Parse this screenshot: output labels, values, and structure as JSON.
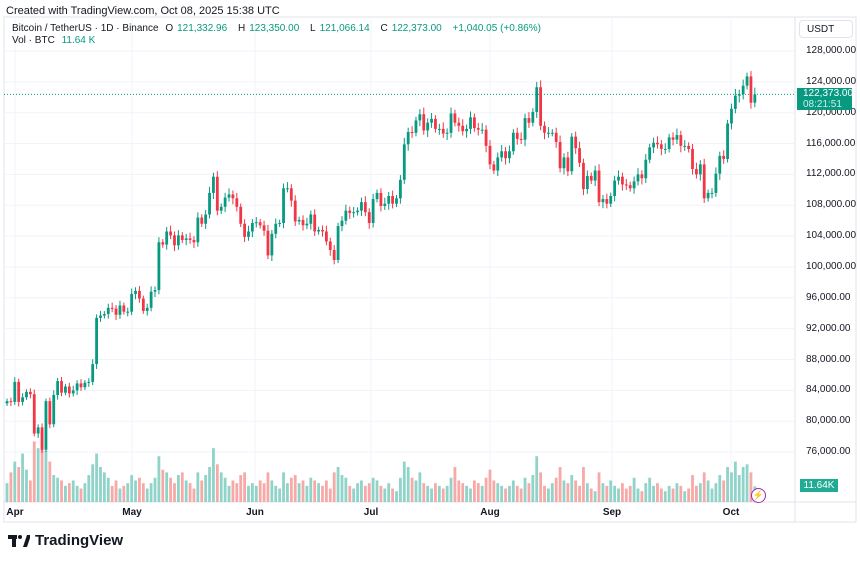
{
  "created": "Created with TradingView.com, Oct 08, 2025 15:38 UTC",
  "legend": {
    "symbol": "Bitcoin / TetherUS · 1D · Binance",
    "o_label": "O",
    "o": "121,332.96",
    "h_label": "H",
    "h": "123,350.00",
    "l_label": "L",
    "l": "121,066.14",
    "c_label": "C",
    "c": "122,373.00",
    "change": "+1,040.05 (+0.86%)",
    "vol_label": "Vol · BTC",
    "vol": "11.64 K"
  },
  "axis": {
    "currency": "USDT",
    "price_labels": [
      "128,000.00",
      "124,000.00",
      "120,000.00",
      "116,000.00",
      "112,000.00",
      "108,000.00",
      "104,000.00",
      "100,000.00",
      "96,000.00",
      "92,000.00",
      "88,000.00",
      "84,000.00",
      "80,000.00",
      "76,000.00"
    ],
    "current_price": "122,373.00",
    "countdown": "08:21:51",
    "volume_badge": "11.64K",
    "time_labels": [
      "Apr",
      "May",
      "Jun",
      "Jul",
      "Aug",
      "Sep",
      "Oct"
    ]
  },
  "colors": {
    "up": "#089981",
    "down": "#f23645",
    "up_vol": "#8fd3c9",
    "down_vol": "#f7a9a7"
  },
  "brand": "TradingView",
  "chart_data": {
    "type": "candlestick",
    "start_date": "2025-03-30",
    "interval": "1D",
    "first_open": 82300,
    "closes": [
      82600,
      82500,
      85100,
      82500,
      83100,
      83800,
      83500,
      78400,
      79200,
      76300,
      82600,
      79600,
      83400,
      85200,
      83700,
      84500,
      83600,
      84000,
      84900,
      84400,
      85000,
      85100,
      87400,
      93400,
      93700,
      93900,
      94700,
      94600,
      93800,
      95000,
      94200,
      94200,
      96500,
      96900,
      95900,
      94300,
      94700,
      96800,
      97000,
      103200,
      102900,
      104600,
      104100,
      102800,
      104100,
      103500,
      103700,
      103500,
      103200,
      106400,
      105600,
      106800,
      109600,
      111700,
      107300,
      107800,
      109000,
      109400,
      108900,
      107800,
      105600,
      103900,
      104600,
      105700,
      105800,
      105400,
      104700,
      101500,
      104300,
      105600,
      105700,
      110200,
      110200,
      108600,
      105900,
      106100,
      105400,
      105600,
      106800,
      104600,
      104800,
      104600,
      103300,
      102200,
      100900,
      105300,
      106000,
      107300,
      107000,
      107100,
      107300,
      108400,
      107100,
      105700,
      108800,
      109600,
      107900,
      108200,
      109200,
      108200,
      108900,
      111300,
      115900,
      117500,
      117400,
      119000,
      119800,
      117700,
      118700,
      119200,
      117900,
      117900,
      117300,
      117400,
      119900,
      118700,
      118300,
      117600,
      117900,
      119400,
      118000,
      117800,
      117800,
      115700,
      113300,
      112500,
      114200,
      115000,
      114100,
      115000,
      117400,
      116600,
      116500,
      119300,
      118700,
      120100,
      123300,
      118300,
      117400,
      117400,
      117400,
      116200,
      112800,
      114200,
      112400,
      116900,
      115400,
      113500,
      110100,
      111800,
      111200,
      112500,
      108400,
      108800,
      108200,
      109200,
      111200,
      111700,
      110700,
      110600,
      110200,
      111100,
      112000,
      111500,
      113900,
      115500,
      116100,
      115900,
      115300,
      115300,
      116800,
      116500,
      117100,
      115700,
      115700,
      115300,
      112700,
      112000,
      113300,
      108900,
      109600,
      109600,
      112100,
      114400,
      114000,
      118600,
      120500,
      122200,
      122400,
      123500,
      124700,
      121300,
      122373
    ],
    "volumes_k": [
      14,
      22,
      30,
      26,
      36,
      24,
      16,
      45,
      40,
      52,
      38,
      30,
      20,
      18,
      16,
      12,
      14,
      16,
      12,
      10,
      14,
      20,
      28,
      36,
      26,
      22,
      18,
      12,
      16,
      10,
      12,
      14,
      20,
      16,
      18,
      14,
      10,
      14,
      18,
      34,
      24,
      22,
      18,
      14,
      20,
      22,
      16,
      14,
      10,
      22,
      16,
      20,
      26,
      40,
      28,
      22,
      18,
      12,
      16,
      14,
      20,
      22,
      12,
      14,
      12,
      16,
      14,
      22,
      16,
      12,
      10,
      22,
      14,
      18,
      20,
      14,
      16,
      12,
      18,
      16,
      14,
      12,
      16,
      10,
      22,
      26,
      20,
      18,
      12,
      10,
      14,
      16,
      12,
      14,
      18,
      16,
      12,
      10,
      14,
      10,
      8,
      18,
      30,
      26,
      18,
      16,
      22,
      14,
      12,
      10,
      14,
      12,
      10,
      12,
      18,
      26,
      16,
      14,
      12,
      10,
      16,
      14,
      12,
      18,
      24,
      16,
      14,
      12,
      10,
      12,
      16,
      12,
      10,
      18,
      14,
      20,
      34,
      22,
      12,
      10,
      14,
      18,
      26,
      16,
      14,
      20,
      16,
      12,
      26,
      14,
      10,
      8,
      22,
      14,
      12,
      16,
      12,
      10,
      14,
      10,
      12,
      18,
      10,
      8,
      14,
      18,
      12,
      14,
      10,
      8,
      12,
      10,
      14,
      12,
      8,
      10,
      20,
      12,
      14,
      22,
      16,
      10,
      14,
      20,
      16,
      26,
      22,
      30,
      20,
      26,
      28,
      22,
      11.64
    ],
    "ylim": [
      74000,
      130000
    ],
    "last_price_line": 122373
  }
}
